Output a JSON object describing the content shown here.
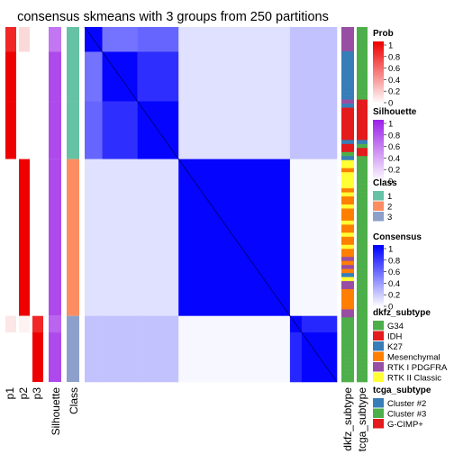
{
  "chart_data": {
    "type": "heatmap",
    "title": "consensus skmeans with 3 groups from 250 partitions",
    "column_labels": [
      "p1",
      "p2",
      "p3",
      "Silhouette",
      "Class"
    ],
    "row_annotation_labels": [
      "dkfz_subtype",
      "tcga_subtype"
    ],
    "groups": [
      {
        "class": 1,
        "size": 6,
        "p": [
          0.85,
          0.15,
          0.0
        ],
        "silhouette": 0.62,
        "sub": "m1",
        "x": [
          0.35,
          0.55,
          0.6
        ]
      },
      {
        "class": 1,
        "size": 12,
        "p": [
          1.0,
          0.0,
          0.0
        ],
        "silhouette": 0.82,
        "sub": "m2",
        "x": [
          0.55,
          0.98,
          0.82
        ]
      },
      {
        "class": 1,
        "size": 14,
        "p": [
          1.0,
          0.0,
          0.0
        ],
        "silhouette": 0.82,
        "sub": "m3",
        "x": [
          0.6,
          0.82,
          0.98
        ]
      },
      {
        "class": 2,
        "size": 38,
        "p": [
          0.0,
          1.0,
          0.0
        ],
        "silhouette": 0.82,
        "sub": "m4",
        "x": [
          0.0,
          0.0,
          0.0
        ]
      },
      {
        "class": 3,
        "size": 4,
        "p": [
          0.1,
          0.05,
          0.85
        ],
        "silhouette": 0.7,
        "sub": "m5",
        "x": [
          0.15,
          0.15,
          0.1
        ]
      },
      {
        "class": 3,
        "size": 12,
        "p": [
          0.0,
          0.0,
          1.0
        ],
        "silhouette": 0.82,
        "sub": "m6",
        "x": [
          0.1,
          0.1,
          0.1
        ]
      }
    ],
    "legends": [
      {
        "title": "Prob",
        "type": "continuous",
        "ticks": [
          "1",
          "0.8",
          "0.6",
          "0.4",
          "0.2",
          "0"
        ],
        "color_low": "#ffffff",
        "color_high": "#ee0000"
      },
      {
        "title": "Silhouette",
        "type": "continuous",
        "ticks": [
          "1",
          "0.8",
          "0.6",
          "0.4",
          "0.2",
          "0"
        ],
        "color_low": "#ffffff",
        "color_high": "#9c22e8"
      },
      {
        "title": "Class",
        "type": "discrete",
        "entries": [
          {
            "label": "1",
            "color": "#66c2a5"
          },
          {
            "label": "2",
            "color": "#fc8d62"
          },
          {
            "label": "3",
            "color": "#8da0cb"
          }
        ]
      },
      {
        "title": "Consensus",
        "type": "continuous",
        "ticks": [
          "1",
          "0.8",
          "0.6",
          "0.4",
          "0.2",
          "0"
        ],
        "color_low": "#ffffff",
        "color_high": "#0000ff"
      },
      {
        "title": "dkfz_subtype",
        "type": "discrete",
        "entries": [
          {
            "label": "G34",
            "color": "#4daf4a"
          },
          {
            "label": "IDH",
            "color": "#e41a1c"
          },
          {
            "label": "K27",
            "color": "#377eb8"
          },
          {
            "label": "Mesenchymal",
            "color": "#ff7f00"
          },
          {
            "label": "RTK I PDGFRA",
            "color": "#984ea3"
          },
          {
            "label": "RTK II Classic",
            "color": "#ffff33"
          }
        ]
      },
      {
        "title": "tcga_subtype",
        "type": "discrete",
        "entries": [
          {
            "label": "Cluster #2",
            "color": "#377eb8"
          },
          {
            "label": "Cluster #3",
            "color": "#4daf4a"
          },
          {
            "label": "G-CIMP+",
            "color": "#e41a1c"
          }
        ]
      }
    ],
    "dkfz_subtype": [
      "RTK I PDGFRA",
      "RTK I PDGFRA",
      "RTK I PDGFRA",
      "RTK I PDGFRA",
      "RTK I PDGFRA",
      "RTK I PDGFRA",
      "K27",
      "K27",
      "K27",
      "K27",
      "K27",
      "K27",
      "K27",
      "K27",
      "K27",
      "K27",
      "K27",
      "K27",
      "RTK I PDGFRA",
      "K27",
      "IDH",
      "IDH",
      "IDH",
      "IDH",
      "IDH",
      "IDH",
      "IDH",
      "IDH",
      "K27",
      "IDH",
      "IDH",
      "G34",
      "K27",
      "RTK II Classic",
      "RTK II Classic",
      "Mesenchymal",
      "RTK II Classic",
      "RTK II Classic",
      "RTK II Classic",
      "RTK II Classic",
      "Mesenchymal",
      "RTK II Classic",
      "Mesenchymal",
      "Mesenchymal",
      "RTK II Classic",
      "Mesenchymal",
      "Mesenchymal",
      "Mesenchymal",
      "RTK II Classic",
      "Mesenchymal",
      "Mesenchymal",
      "RTK II Classic",
      "Mesenchymal",
      "Mesenchymal",
      "RTK II Classic",
      "Mesenchymal",
      "Mesenchymal",
      "RTK I PDGFRA",
      "Mesenchymal",
      "RTK I PDGFRA",
      "Mesenchymal",
      "K27",
      "RTK II Classic",
      "RTK I PDGFRA",
      "RTK I PDGFRA",
      "Mesenchymal",
      "Mesenchymal",
      "Mesenchymal",
      "Mesenchymal",
      "Mesenchymal",
      "RTK I PDGFRA",
      "RTK I PDGFRA",
      "G34",
      "G34",
      "G34",
      "G34",
      "G34",
      "G34",
      "G34",
      "G34",
      "G34",
      "G34",
      "G34",
      "G34",
      "G34",
      "G34",
      "G34",
      "G34"
    ],
    "tcga_subtype": [
      "Cluster #3",
      "Cluster #3",
      "Cluster #3",
      "Cluster #3",
      "Cluster #3",
      "Cluster #3",
      "Cluster #3",
      "Cluster #3",
      "Cluster #3",
      "Cluster #3",
      "Cluster #3",
      "Cluster #3",
      "Cluster #3",
      "Cluster #3",
      "Cluster #3",
      "Cluster #3",
      "Cluster #3",
      "Cluster #3",
      "G-CIMP+",
      "G-CIMP+",
      "G-CIMP+",
      "G-CIMP+",
      "G-CIMP+",
      "G-CIMP+",
      "G-CIMP+",
      "G-CIMP+",
      "G-CIMP+",
      "G-CIMP+",
      "Cluster #2",
      "Cluster #3",
      "G-CIMP+",
      "G-CIMP+",
      "Cluster #3",
      "Cluster #3",
      "Cluster #3",
      "Cluster #3",
      "Cluster #3",
      "Cluster #3",
      "Cluster #3",
      "Cluster #3",
      "Cluster #3",
      "Cluster #3",
      "Cluster #3",
      "Cluster #3",
      "Cluster #3",
      "Cluster #3",
      "Cluster #3",
      "Cluster #3",
      "Cluster #3",
      "Cluster #3",
      "Cluster #3",
      "Cluster #3",
      "Cluster #3",
      "Cluster #3",
      "Cluster #3",
      "Cluster #3",
      "Cluster #3",
      "Cluster #3",
      "Cluster #3",
      "Cluster #3",
      "Cluster #3",
      "Cluster #3",
      "Cluster #3",
      "Cluster #3",
      "Cluster #3",
      "Cluster #3",
      "Cluster #3",
      "Cluster #3",
      "Cluster #3",
      "Cluster #3",
      "Cluster #3",
      "Cluster #3",
      "Cluster #3",
      "Cluster #3",
      "Cluster #3",
      "Cluster #3",
      "Cluster #3",
      "Cluster #3",
      "Cluster #3",
      "Cluster #3",
      "Cluster #3",
      "Cluster #3",
      "Cluster #3",
      "Cluster #3",
      "Cluster #3",
      "Cluster #3",
      "Cluster #3",
      "Cluster #3"
    ]
  }
}
